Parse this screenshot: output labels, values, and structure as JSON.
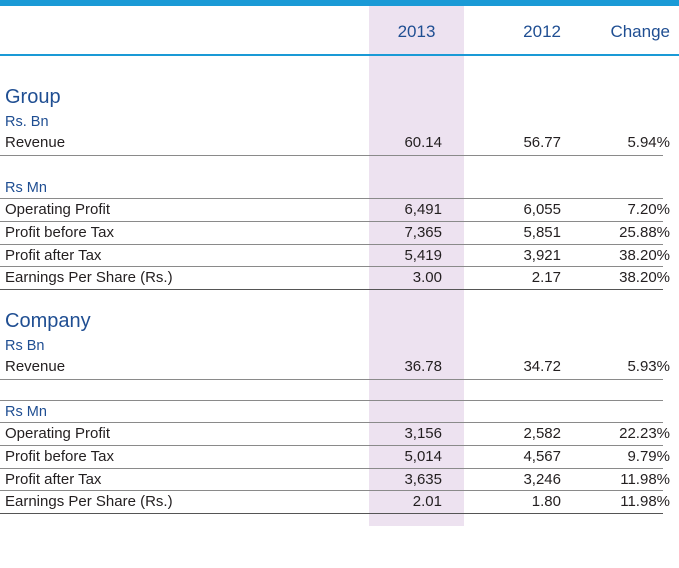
{
  "header": {
    "col_2013": "2013",
    "col_2012": "2012",
    "col_change": "Change"
  },
  "group": {
    "title": "Group",
    "unit_bn": "Rs. Bn",
    "revenue": {
      "label": "Revenue",
      "y2013": "60.14",
      "y2012": "56.77",
      "change": "5.94%"
    },
    "unit_mn": "Rs Mn",
    "rows": [
      {
        "label": "Operating Profit",
        "y2013": "6,491",
        "y2012": "6,055",
        "change": "7.20%"
      },
      {
        "label": "Profit before Tax",
        "y2013": "7,365",
        "y2012": "5,851",
        "change": "25.88%"
      },
      {
        "label": "Profit after Tax",
        "y2013": "5,419",
        "y2012": "3,921",
        "change": "38.20%"
      },
      {
        "label": "Earnings Per Share (Rs.)",
        "y2013": "3.00",
        "y2012": "2.17",
        "change": "38.20%"
      }
    ]
  },
  "company": {
    "title": "Company",
    "unit_bn": "Rs Bn",
    "revenue": {
      "label": "Revenue",
      "y2013": "36.78",
      "y2012": "34.72",
      "change": "5.93%"
    },
    "unit_mn": "Rs Mn",
    "rows": [
      {
        "label": "Operating Profit",
        "y2013": "3,156",
        "y2012": "2,582",
        "change": "22.23%"
      },
      {
        "label": "Profit before Tax",
        "y2013": "5,014",
        "y2012": "4,567",
        "change": "9.79%"
      },
      {
        "label": "Profit after Tax",
        "y2013": "3,635",
        "y2012": "3,246",
        "change": "11.98%"
      },
      {
        "label": "Earnings Per Share (Rs.)",
        "y2013": "2.01",
        "y2012": "1.80",
        "change": "11.98%"
      }
    ]
  },
  "colors": {
    "accent_blue": "#1a9ad6",
    "heading_blue": "#1f4e92",
    "highlight_column": "#ede2f0"
  }
}
